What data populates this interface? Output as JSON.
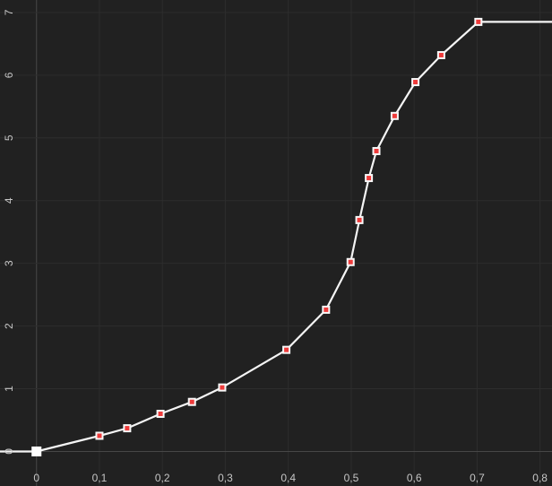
{
  "chart_data": {
    "type": "line",
    "title": "",
    "xlabel": "",
    "ylabel": "",
    "legend": "none",
    "grid": true,
    "xlim": [
      -0.058,
      0.819
    ],
    "ylim": [
      -0.551,
      7.199
    ],
    "extend_left": true,
    "extend_right": true,
    "series": [
      {
        "name": "curve",
        "points": [
          {
            "x": 0.0,
            "y": 0.0,
            "selected": true
          },
          {
            "x": 0.1,
            "y": 0.25,
            "selected": false
          },
          {
            "x": 0.144,
            "y": 0.37,
            "selected": false
          },
          {
            "x": 0.197,
            "y": 0.6,
            "selected": false
          },
          {
            "x": 0.247,
            "y": 0.79,
            "selected": false
          },
          {
            "x": 0.295,
            "y": 1.02,
            "selected": false
          },
          {
            "x": 0.397,
            "y": 1.62,
            "selected": false
          },
          {
            "x": 0.46,
            "y": 2.26,
            "selected": false
          },
          {
            "x": 0.499,
            "y": 3.02,
            "selected": false
          },
          {
            "x": 0.513,
            "y": 3.69,
            "selected": false
          },
          {
            "x": 0.528,
            "y": 4.36,
            "selected": false
          },
          {
            "x": 0.54,
            "y": 4.79,
            "selected": false
          },
          {
            "x": 0.569,
            "y": 5.35,
            "selected": false
          },
          {
            "x": 0.602,
            "y": 5.89,
            "selected": false
          },
          {
            "x": 0.643,
            "y": 6.32,
            "selected": false
          },
          {
            "x": 0.702,
            "y": 6.85,
            "selected": false
          }
        ]
      }
    ],
    "x_ticks": [
      {
        "value": 0.0,
        "label": "0"
      },
      {
        "value": 0.1,
        "label": "0,1"
      },
      {
        "value": 0.2,
        "label": "0,2"
      },
      {
        "value": 0.3,
        "label": "0,3"
      },
      {
        "value": 0.4,
        "label": "0,4"
      },
      {
        "value": 0.5,
        "label": "0,5"
      },
      {
        "value": 0.6,
        "label": "0,6"
      },
      {
        "value": 0.7,
        "label": "0,7"
      },
      {
        "value": 0.8,
        "label": "0,8"
      }
    ],
    "y_ticks": [
      {
        "value": 0,
        "label": "0"
      },
      {
        "value": 1,
        "label": "1"
      },
      {
        "value": 2,
        "label": "2"
      },
      {
        "value": 3,
        "label": "3"
      },
      {
        "value": 4,
        "label": "4"
      },
      {
        "value": 5,
        "label": "5"
      },
      {
        "value": 6,
        "label": "6"
      },
      {
        "value": 7,
        "label": "7"
      }
    ],
    "colors": {
      "background": "#212121",
      "gridline": "#2d2d2d",
      "axis_line": "#474747",
      "tick_label": "#c6c6c6",
      "line": "#f5f5f5",
      "marker_border": "#f7f7f7",
      "marker_fill": "#ee3b3b",
      "selected_marker": "#ffffff"
    },
    "marker_size": 9,
    "marker_inner_size": 5,
    "selected_marker_size": 11,
    "line_width": 2.2
  }
}
